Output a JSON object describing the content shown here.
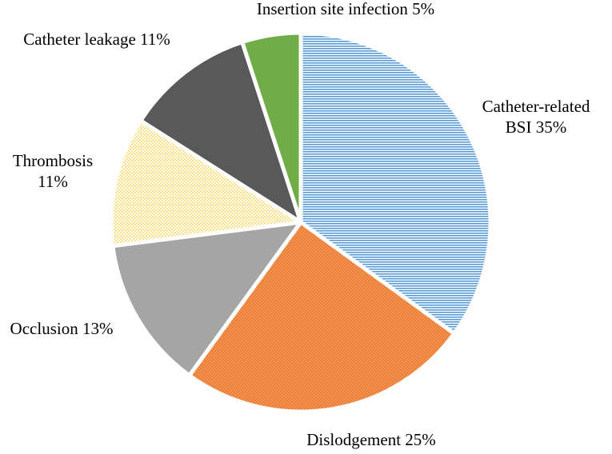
{
  "chart_data": {
    "type": "pie",
    "title": "",
    "start_angle_deg": 0,
    "direction": "clockwise",
    "legend": "none",
    "slices": [
      {
        "name": "Catheter-related BSI",
        "value": 35,
        "label_lines": [
          "Catheter-related",
          "BSI  35%"
        ],
        "color": "#5b9bd5",
        "pattern": "horizontal-lines"
      },
      {
        "name": "Dislodgement",
        "value": 25,
        "label_lines": [
          "Dislodgement  25%"
        ],
        "color": "#ed7d31",
        "pattern": "dots"
      },
      {
        "name": "Occlusion",
        "value": 13,
        "label_lines": [
          "Occlusion  13%"
        ],
        "color": "#a5a5a5",
        "pattern": "solid"
      },
      {
        "name": "Thrombosis",
        "value": 11,
        "label_lines": [
          "Thrombosis",
          "11%"
        ],
        "color": "#ffd966",
        "pattern": "light-dots"
      },
      {
        "name": "Catheter leakage",
        "value": 11,
        "label_lines": [
          "Catheter leakage  11%"
        ],
        "color": "#595959",
        "pattern": "solid"
      },
      {
        "name": "Insertion site infection",
        "value": 5,
        "label_lines": [
          "Insertion site  infection  5%"
        ],
        "color": "#70ad47",
        "pattern": "solid"
      }
    ]
  }
}
